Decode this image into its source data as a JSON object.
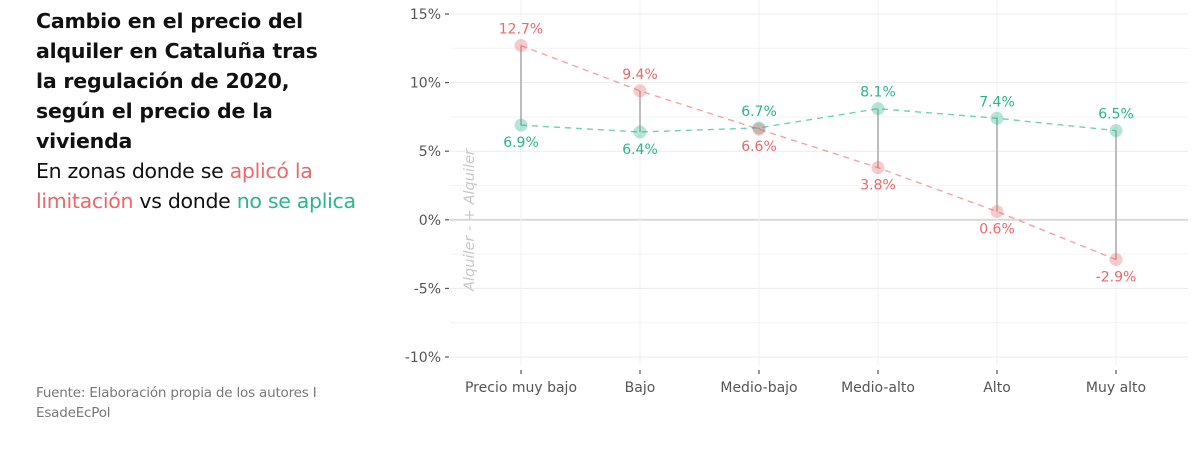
{
  "title": "Cambio en el precio del alquiler en Cataluña tras la regulación de 2020, según el precio de la vivienda",
  "title_lines": [
    "Cambio en el precio del",
    "alquiler en Cataluña tras",
    "la regulación de 2020,",
    "según el precio de la",
    "vivienda"
  ],
  "subtitle": {
    "part1": "En zonas donde se ",
    "part2_red": "aplicó la limitación",
    "part3": " vs donde ",
    "part4_green": "no se aplica"
  },
  "source": "Fuente: Elaboración propia de los autores I EsadeEcPol",
  "colors": {
    "applied": "#E8686B",
    "not_applied": "#2BB48D",
    "connector": "#BDBDBD",
    "grid": "#EBEBEB",
    "zero_line": "#D9D9D9",
    "axis_text": "#555555",
    "annotation": "#C8C8C8"
  },
  "axis_annotation": "Alquiler -    + Alquiler",
  "chart_data": {
    "type": "dumbbell",
    "title": "Cambio en el precio del alquiler en Cataluña tras la regulación de 2020, según el precio de la vivienda",
    "subtitle": "En zonas donde se aplicó la limitación vs donde no se aplica",
    "categories": [
      "Precio muy bajo",
      "Bajo",
      "Medio-bajo",
      "Medio-alto",
      "Alto",
      "Muy alto"
    ],
    "series": [
      {
        "name": "Se aplicó la limitación",
        "color": "#E8686B",
        "values": [
          12.7,
          9.4,
          6.6,
          3.8,
          0.6,
          -2.9
        ],
        "labels": [
          "12.7%",
          "9.4%",
          "6.6%",
          "3.8%",
          "0.6%",
          "-2.9%"
        ]
      },
      {
        "name": "No se aplica",
        "color": "#2BB48D",
        "values": [
          6.9,
          6.4,
          6.7,
          8.1,
          7.4,
          6.5
        ],
        "labels": [
          "6.9%",
          "6.4%",
          "6.7%",
          "8.1%",
          "7.4%",
          "6.5%"
        ]
      }
    ],
    "xlabel": "",
    "ylabel": "Alquiler -   + Alquiler",
    "ylim": [
      -10,
      15
    ],
    "yticks": [
      15,
      10,
      5,
      0,
      -5,
      -10
    ],
    "ytick_labels": [
      "15%",
      "10%",
      "5%",
      "0%",
      "-5%",
      "-10%"
    ],
    "grid": true,
    "legend": "none (encoded in subtitle colors)"
  }
}
